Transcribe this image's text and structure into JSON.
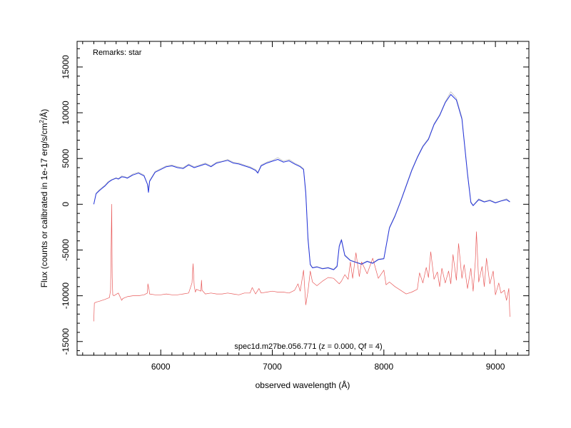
{
  "chart_data": {
    "type": "line",
    "title": "",
    "xlabel": "observed wavelength (Å)",
    "ylabel_main": "Flux (counts or calibrated in 1e-17 erg/s/cm",
    "ylabel_sup": "2",
    "ylabel_tail": "/Å)",
    "xlim": [
      5250,
      9300
    ],
    "ylim": [
      -16500,
      17800
    ],
    "x_ticks": [
      6000,
      7000,
      8000,
      9000
    ],
    "x_tick_labels": [
      "6000",
      "7000",
      "8000",
      "9000"
    ],
    "y_ticks": [
      -15000,
      -10000,
      -5000,
      0,
      5000,
      10000,
      15000
    ],
    "y_tick_labels": [
      "-15000",
      "-10000",
      "-5000",
      "0",
      "5000",
      "10000",
      "15000"
    ],
    "remarks": "Remarks: star",
    "caption": "spec1d.m27be.056.771 (z = 0.000, Qf = 4)",
    "series": [
      {
        "role": "raw",
        "color": "#c0c0c0",
        "x": [
          5400,
          5420,
          5450,
          5480,
          5500,
          5530,
          5560,
          5600,
          5620,
          5650,
          5680,
          5700,
          5750,
          5800,
          5850,
          5880,
          5890,
          5900,
          5950,
          6000,
          6050,
          6100,
          6150,
          6200,
          6250,
          6300,
          6350,
          6400,
          6450,
          6500,
          6550,
          6600,
          6650,
          6700,
          6750,
          6800,
          6850,
          6870,
          6900,
          6950,
          7000,
          7050,
          7100,
          7150,
          7200,
          7250,
          7280,
          7300,
          7320,
          7340,
          7360,
          7400,
          7450,
          7500,
          7550,
          7580,
          7600,
          7620,
          7650,
          7700,
          7750,
          7800,
          7850,
          7900,
          7950,
          8000,
          8050,
          8100,
          8150,
          8200,
          8250,
          8300,
          8350,
          8400,
          8450,
          8500,
          8550,
          8600,
          8650,
          8700,
          8750,
          8780,
          8800,
          8850,
          8900,
          8950,
          9000,
          9050,
          9100,
          9130
        ],
        "y": [
          0,
          1200,
          1600,
          1900,
          2100,
          2500,
          2700,
          2900,
          2800,
          3100,
          3000,
          2900,
          3300,
          3500,
          3200,
          2200,
          1800,
          2600,
          3600,
          3900,
          4200,
          4300,
          4100,
          4000,
          4400,
          4100,
          4300,
          4500,
          4200,
          4600,
          4700,
          4900,
          4600,
          4500,
          4300,
          4100,
          3800,
          3500,
          4300,
          4600,
          4800,
          5100,
          4700,
          4900,
          4500,
          4200,
          3900,
          1500,
          -3500,
          -6500,
          -6900,
          -6800,
          -7000,
          -6900,
          -7100,
          -6700,
          -4500,
          -3800,
          -5500,
          -6100,
          -6300,
          -6500,
          -6200,
          -6400,
          -6000,
          -5900,
          -2500,
          -1200,
          400,
          2100,
          3800,
          5200,
          6400,
          7200,
          8800,
          9800,
          11200,
          12300,
          11600,
          9500,
          3500,
          300,
          -100,
          600,
          300,
          500,
          200,
          400,
          600,
          300
        ]
      },
      {
        "role": "smoothed",
        "color": "#2233dd",
        "x": [
          5400,
          5420,
          5450,
          5480,
          5500,
          5530,
          5560,
          5600,
          5620,
          5650,
          5680,
          5700,
          5750,
          5800,
          5850,
          5880,
          5890,
          5900,
          5950,
          6000,
          6050,
          6100,
          6150,
          6200,
          6250,
          6300,
          6350,
          6400,
          6450,
          6500,
          6550,
          6600,
          6650,
          6700,
          6750,
          6800,
          6850,
          6870,
          6900,
          6950,
          7000,
          7050,
          7100,
          7150,
          7200,
          7250,
          7280,
          7300,
          7320,
          7340,
          7360,
          7400,
          7450,
          7500,
          7550,
          7580,
          7600,
          7620,
          7650,
          7700,
          7750,
          7800,
          7850,
          7900,
          7950,
          8000,
          8050,
          8100,
          8150,
          8200,
          8250,
          8300,
          8350,
          8400,
          8450,
          8500,
          8550,
          8600,
          8650,
          8700,
          8750,
          8780,
          8800,
          8850,
          8900,
          8950,
          9000,
          9050,
          9100,
          9130
        ],
        "y": [
          0,
          1150,
          1500,
          1800,
          2000,
          2400,
          2650,
          2850,
          2750,
          3000,
          2950,
          2850,
          3200,
          3400,
          3100,
          2200,
          1300,
          2500,
          3500,
          3800,
          4100,
          4200,
          4000,
          3900,
          4300,
          4000,
          4200,
          4400,
          4100,
          4500,
          4650,
          4800,
          4500,
          4400,
          4200,
          4000,
          3700,
          3400,
          4200,
          4500,
          4700,
          4900,
          4600,
          4750,
          4400,
          4100,
          3800,
          1200,
          -3800,
          -6600,
          -6950,
          -6850,
          -7050,
          -6950,
          -7150,
          -6800,
          -4600,
          -3900,
          -5600,
          -6150,
          -6350,
          -6550,
          -6250,
          -6450,
          -6050,
          -5950,
          -2600,
          -1300,
          300,
          2000,
          3700,
          5100,
          6300,
          7100,
          8700,
          9700,
          11100,
          12000,
          11400,
          9300,
          3300,
          200,
          -150,
          500,
          250,
          400,
          150,
          350,
          500,
          250
        ]
      },
      {
        "role": "sky",
        "color": "#e85a5a",
        "x": [
          5400,
          5405,
          5420,
          5450,
          5500,
          5540,
          5550,
          5555,
          5560,
          5565,
          5570,
          5580,
          5620,
          5650,
          5660,
          5680,
          5700,
          5750,
          5800,
          5850,
          5880,
          5885,
          5895,
          5900,
          5950,
          6000,
          6050,
          6100,
          6150,
          6200,
          6250,
          6280,
          6290,
          6300,
          6310,
          6320,
          6360,
          6365,
          6370,
          6400,
          6450,
          6500,
          6550,
          6600,
          6650,
          6700,
          6750,
          6800,
          6820,
          6850,
          6880,
          6900,
          6950,
          7000,
          7050,
          7100,
          7150,
          7200,
          7230,
          7250,
          7280,
          7300,
          7320,
          7340,
          7360,
          7400,
          7450,
          7500,
          7550,
          7600,
          7620,
          7650,
          7680,
          7700,
          7720,
          7750,
          7780,
          7800,
          7850,
          7900,
          7950,
          8000,
          8020,
          8050,
          8100,
          8150,
          8200,
          8250,
          8300,
          8320,
          8350,
          8380,
          8400,
          8420,
          8450,
          8480,
          8500,
          8520,
          8550,
          8580,
          8600,
          8620,
          8650,
          8670,
          8700,
          8720,
          8750,
          8780,
          8800,
          8820,
          8830,
          8850,
          8880,
          8900,
          8920,
          8950,
          8980,
          9000,
          9030,
          9050,
          9080,
          9100,
          9120,
          9130
        ],
        "y": [
          -12800,
          -10800,
          -10700,
          -10600,
          -10400,
          -10200,
          -9400,
          -5000,
          0,
          -8000,
          -9900,
          -10000,
          -9700,
          -10500,
          -10300,
          -10200,
          -10100,
          -10000,
          -10000,
          -9900,
          -9700,
          -8700,
          -9300,
          -9800,
          -9900,
          -9900,
          -9800,
          -9900,
          -9900,
          -9800,
          -9700,
          -8600,
          -6500,
          -8900,
          -9600,
          -9300,
          -9500,
          -8300,
          -9400,
          -9800,
          -9700,
          -9800,
          -9800,
          -9700,
          -9800,
          -9900,
          -9700,
          -9700,
          -9100,
          -9800,
          -9200,
          -9700,
          -9600,
          -9500,
          -9600,
          -9600,
          -9700,
          -9400,
          -8700,
          -9500,
          -7200,
          -11000,
          -9500,
          -7300,
          -8500,
          -8900,
          -8400,
          -8000,
          -8100,
          -8700,
          -8400,
          -7700,
          -8200,
          -6300,
          -8100,
          -5300,
          -7900,
          -6300,
          -7600,
          -5900,
          -8100,
          -7200,
          -8800,
          -8500,
          -9000,
          -9400,
          -9800,
          -9600,
          -9300,
          -7500,
          -8600,
          -6900,
          -8000,
          -5200,
          -8200,
          -7400,
          -9000,
          -7000,
          -8600,
          -7300,
          -8700,
          -5500,
          -8300,
          -4300,
          -8100,
          -6600,
          -9200,
          -7000,
          -9500,
          -6200,
          -3000,
          -8500,
          -6800,
          -9000,
          -5900,
          -8700,
          -7300,
          -9900,
          -8600,
          -9700,
          -9400,
          -10500,
          -9200,
          -12300
        ]
      }
    ]
  }
}
